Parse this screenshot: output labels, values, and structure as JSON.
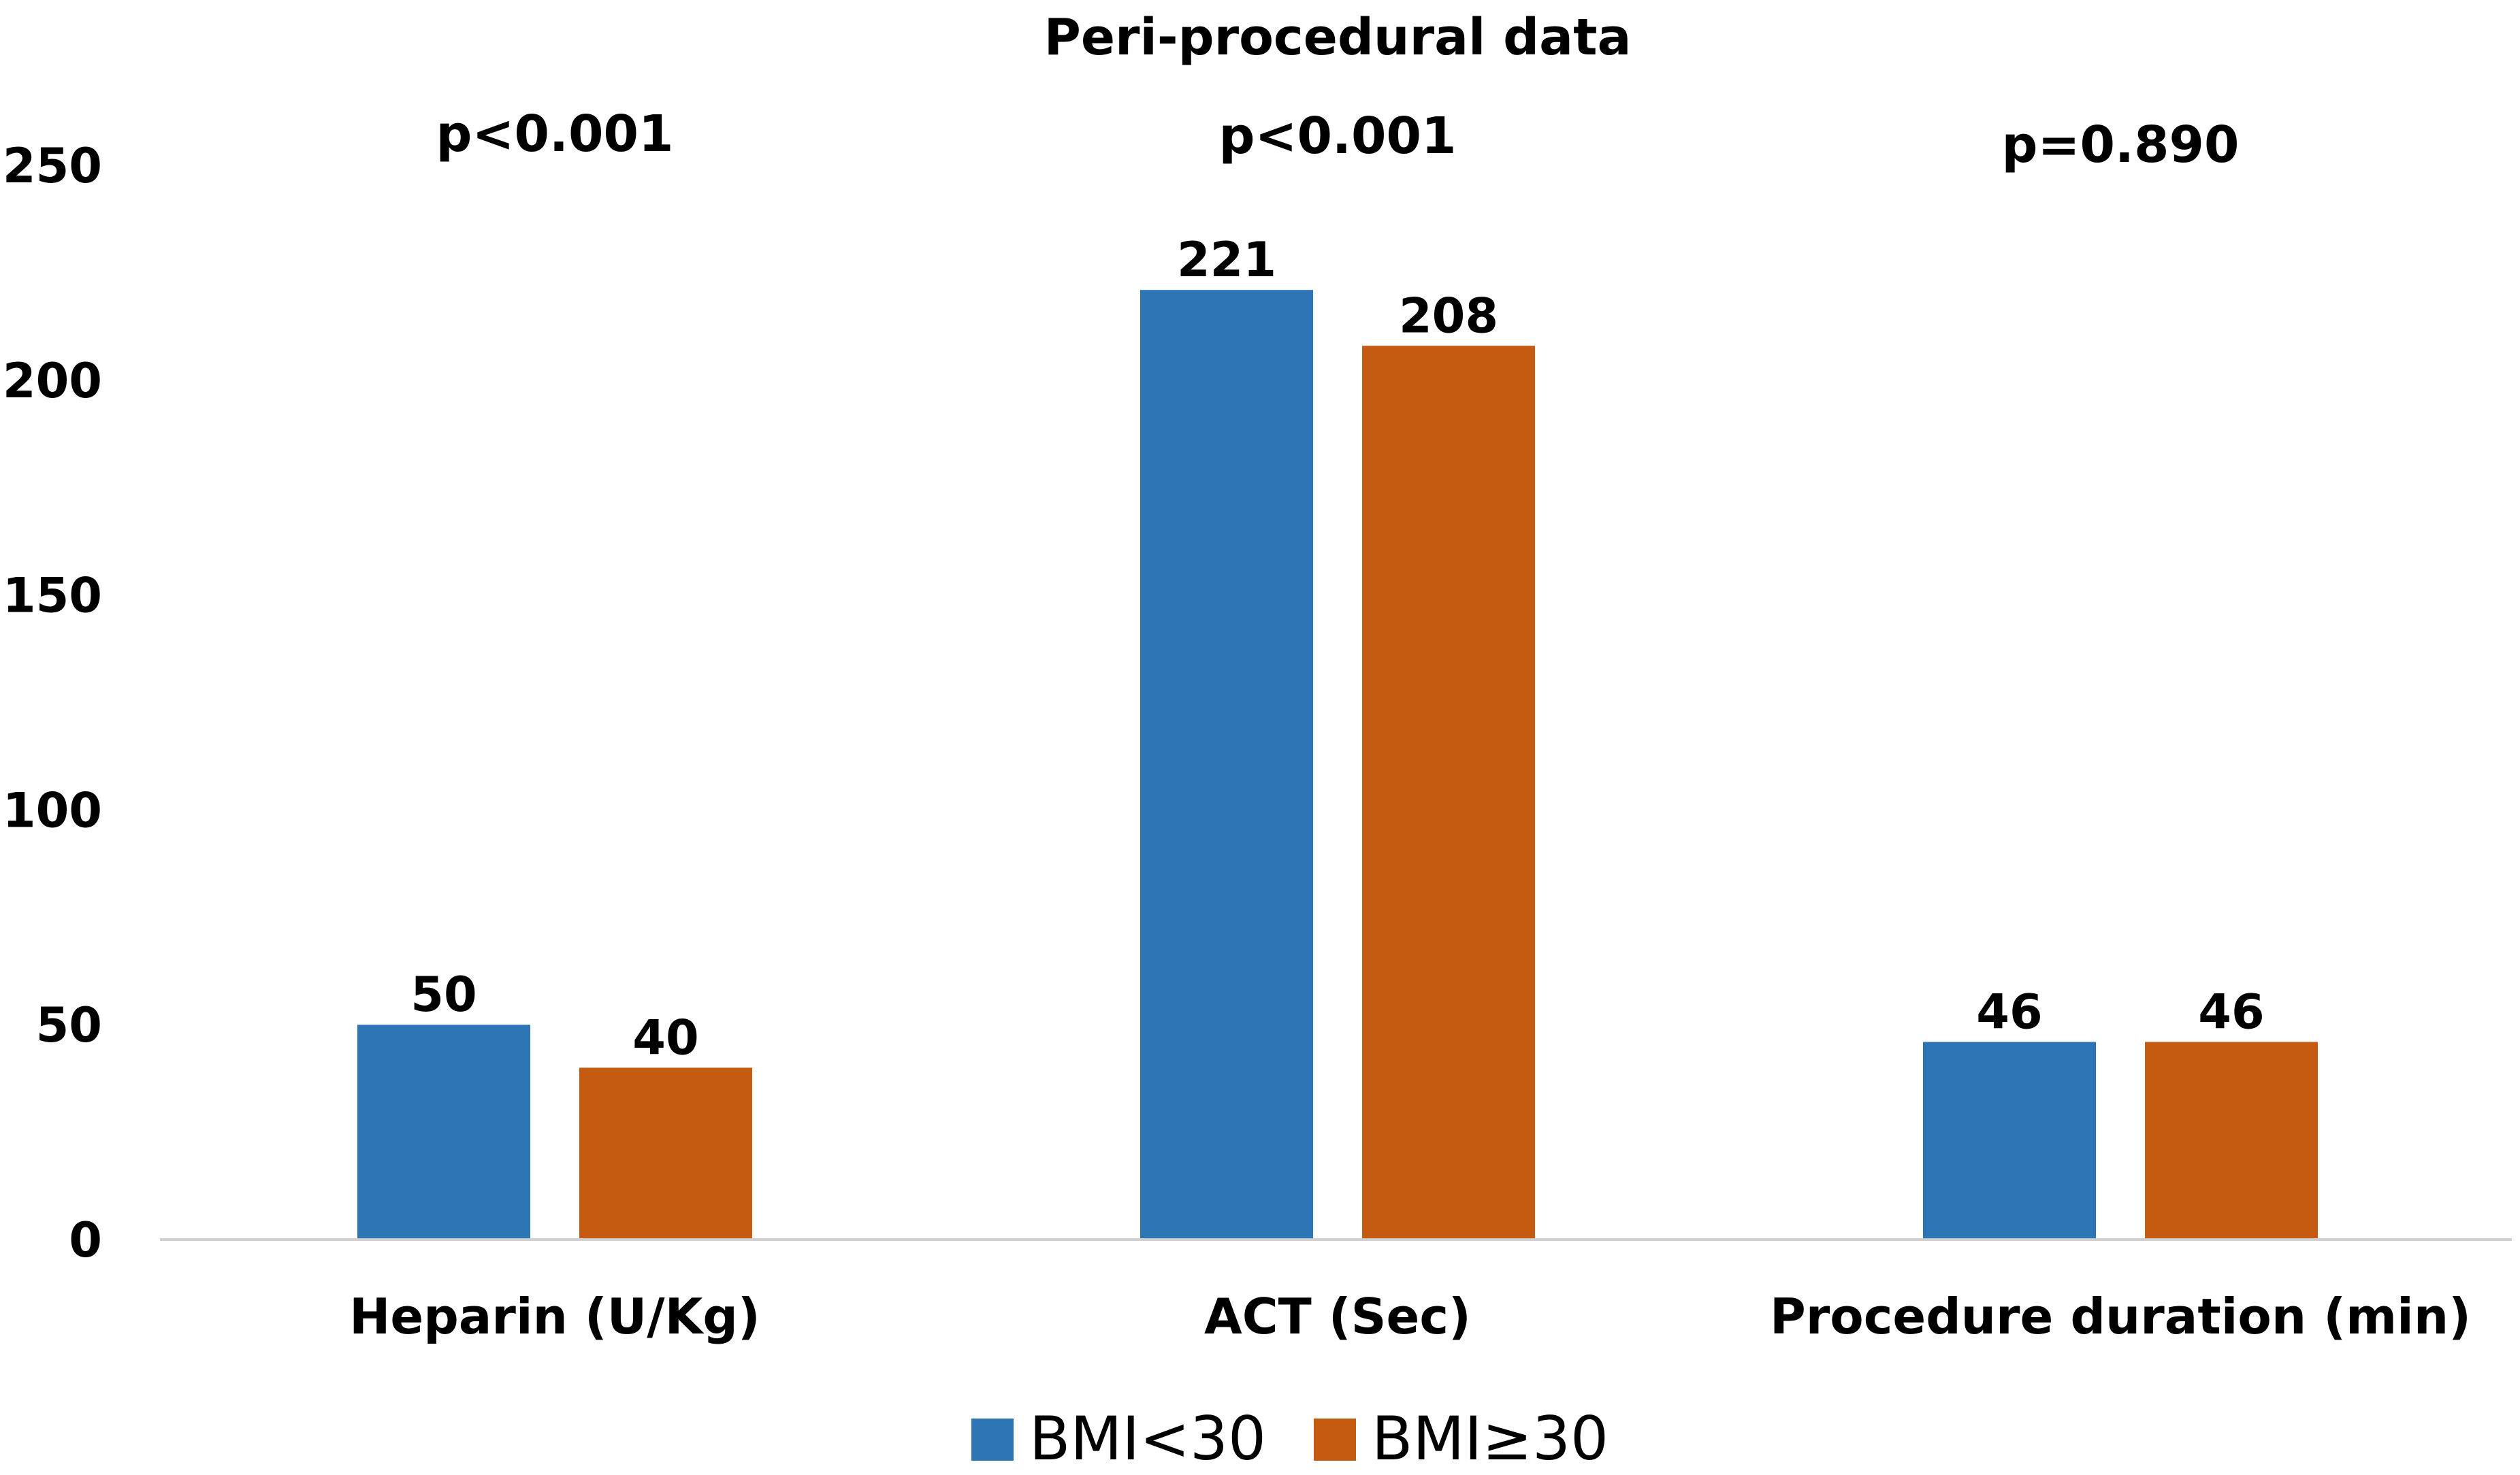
{
  "chart_data": {
    "type": "bar",
    "title": "Peri-procedural data",
    "categories": [
      "Heparin (U/Kg)",
      "ACT (Sec)",
      "Procedure duration (min)"
    ],
    "p_values": [
      "p<0.001",
      "p<0.001",
      "p=0.890"
    ],
    "series": [
      {
        "name": "BMI<30",
        "color": "#2E75B6",
        "values": [
          50,
          221,
          46
        ]
      },
      {
        "name": "BMI≥30",
        "color": "#C55A11",
        "values": [
          40,
          208,
          46
        ]
      }
    ],
    "yticks": [
      "0",
      "50",
      "100",
      "150",
      "200",
      "250"
    ],
    "ylim": [
      0,
      250
    ],
    "xlabel": "",
    "ylabel": "",
    "legend_position": "bottom",
    "grid": false
  }
}
